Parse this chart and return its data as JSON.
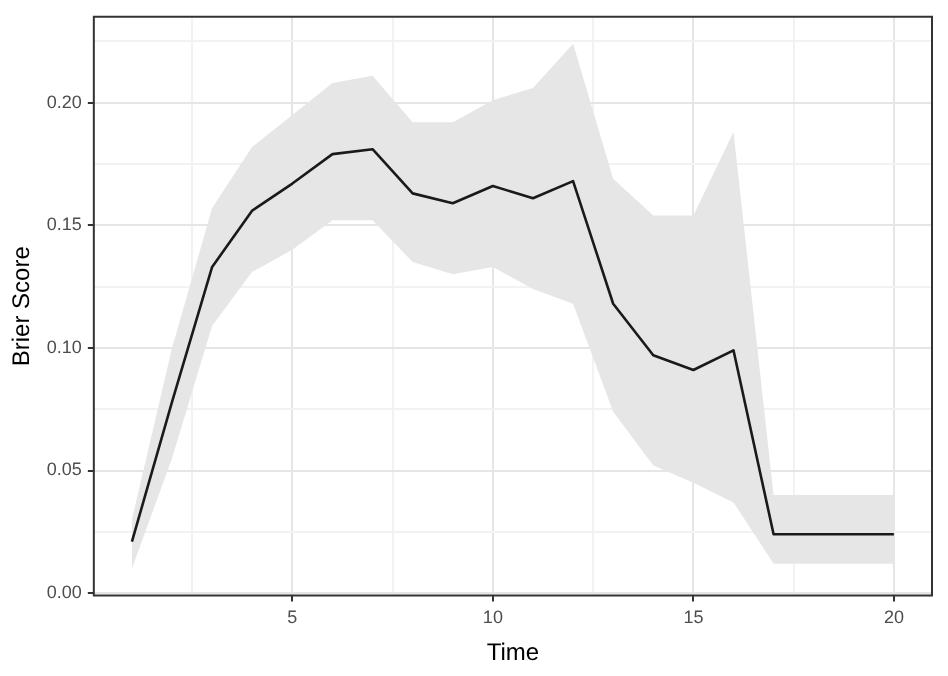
{
  "chart_data": {
    "type": "line",
    "xlabel": "Time",
    "ylabel": "Brier Score",
    "x": [
      1,
      2,
      3,
      4,
      5,
      6,
      7,
      8,
      9,
      10,
      11,
      12,
      13,
      14,
      15,
      16,
      17,
      20
    ],
    "series": [
      {
        "color": "#1a1a1a",
        "values": [
          0.021,
          0.078,
          0.133,
          0.156,
          0.167,
          0.179,
          0.181,
          0.163,
          0.159,
          0.166,
          0.161,
          0.168,
          0.118,
          0.097,
          0.091,
          0.099,
          0.024,
          0.024
        ],
        "lower": [
          0.01,
          0.055,
          0.109,
          0.131,
          0.14,
          0.152,
          0.152,
          0.135,
          0.13,
          0.133,
          0.124,
          0.118,
          0.074,
          0.052,
          0.045,
          0.037,
          0.012,
          0.012
        ],
        "upper": [
          0.03,
          0.1,
          0.157,
          0.182,
          0.195,
          0.208,
          0.211,
          0.192,
          0.192,
          0.201,
          0.206,
          0.224,
          0.169,
          0.154,
          0.154,
          0.188,
          0.04,
          0.04
        ]
      }
    ],
    "xlim": [
      0.05,
      20.95
    ],
    "ylim": [
      -0.001,
      0.235
    ],
    "xticks": [
      {
        "value": 2.5,
        "label": null
      },
      5,
      {
        "value": 7.5,
        "label": null
      },
      10,
      {
        "value": 12.5,
        "label": null
      },
      15,
      {
        "value": 17.5,
        "label": null
      },
      20
    ],
    "yticks": [
      {
        "value": 0,
        "label": "0.00"
      },
      {
        "value": 0.025,
        "label": null
      },
      {
        "value": 0.05,
        "label": "0.05"
      },
      {
        "value": 0.075,
        "label": null
      },
      {
        "value": 0.1,
        "label": "0.10"
      },
      {
        "value": 0.125,
        "label": null
      },
      {
        "value": 0.15,
        "label": "0.15"
      },
      {
        "value": 0.175,
        "label": null
      },
      {
        "value": 0.2,
        "label": "0.20"
      },
      {
        "value": 0.225,
        "label": null
      }
    ],
    "grid": true,
    "marker": "none",
    "line_style": "solid",
    "legend": false
  }
}
